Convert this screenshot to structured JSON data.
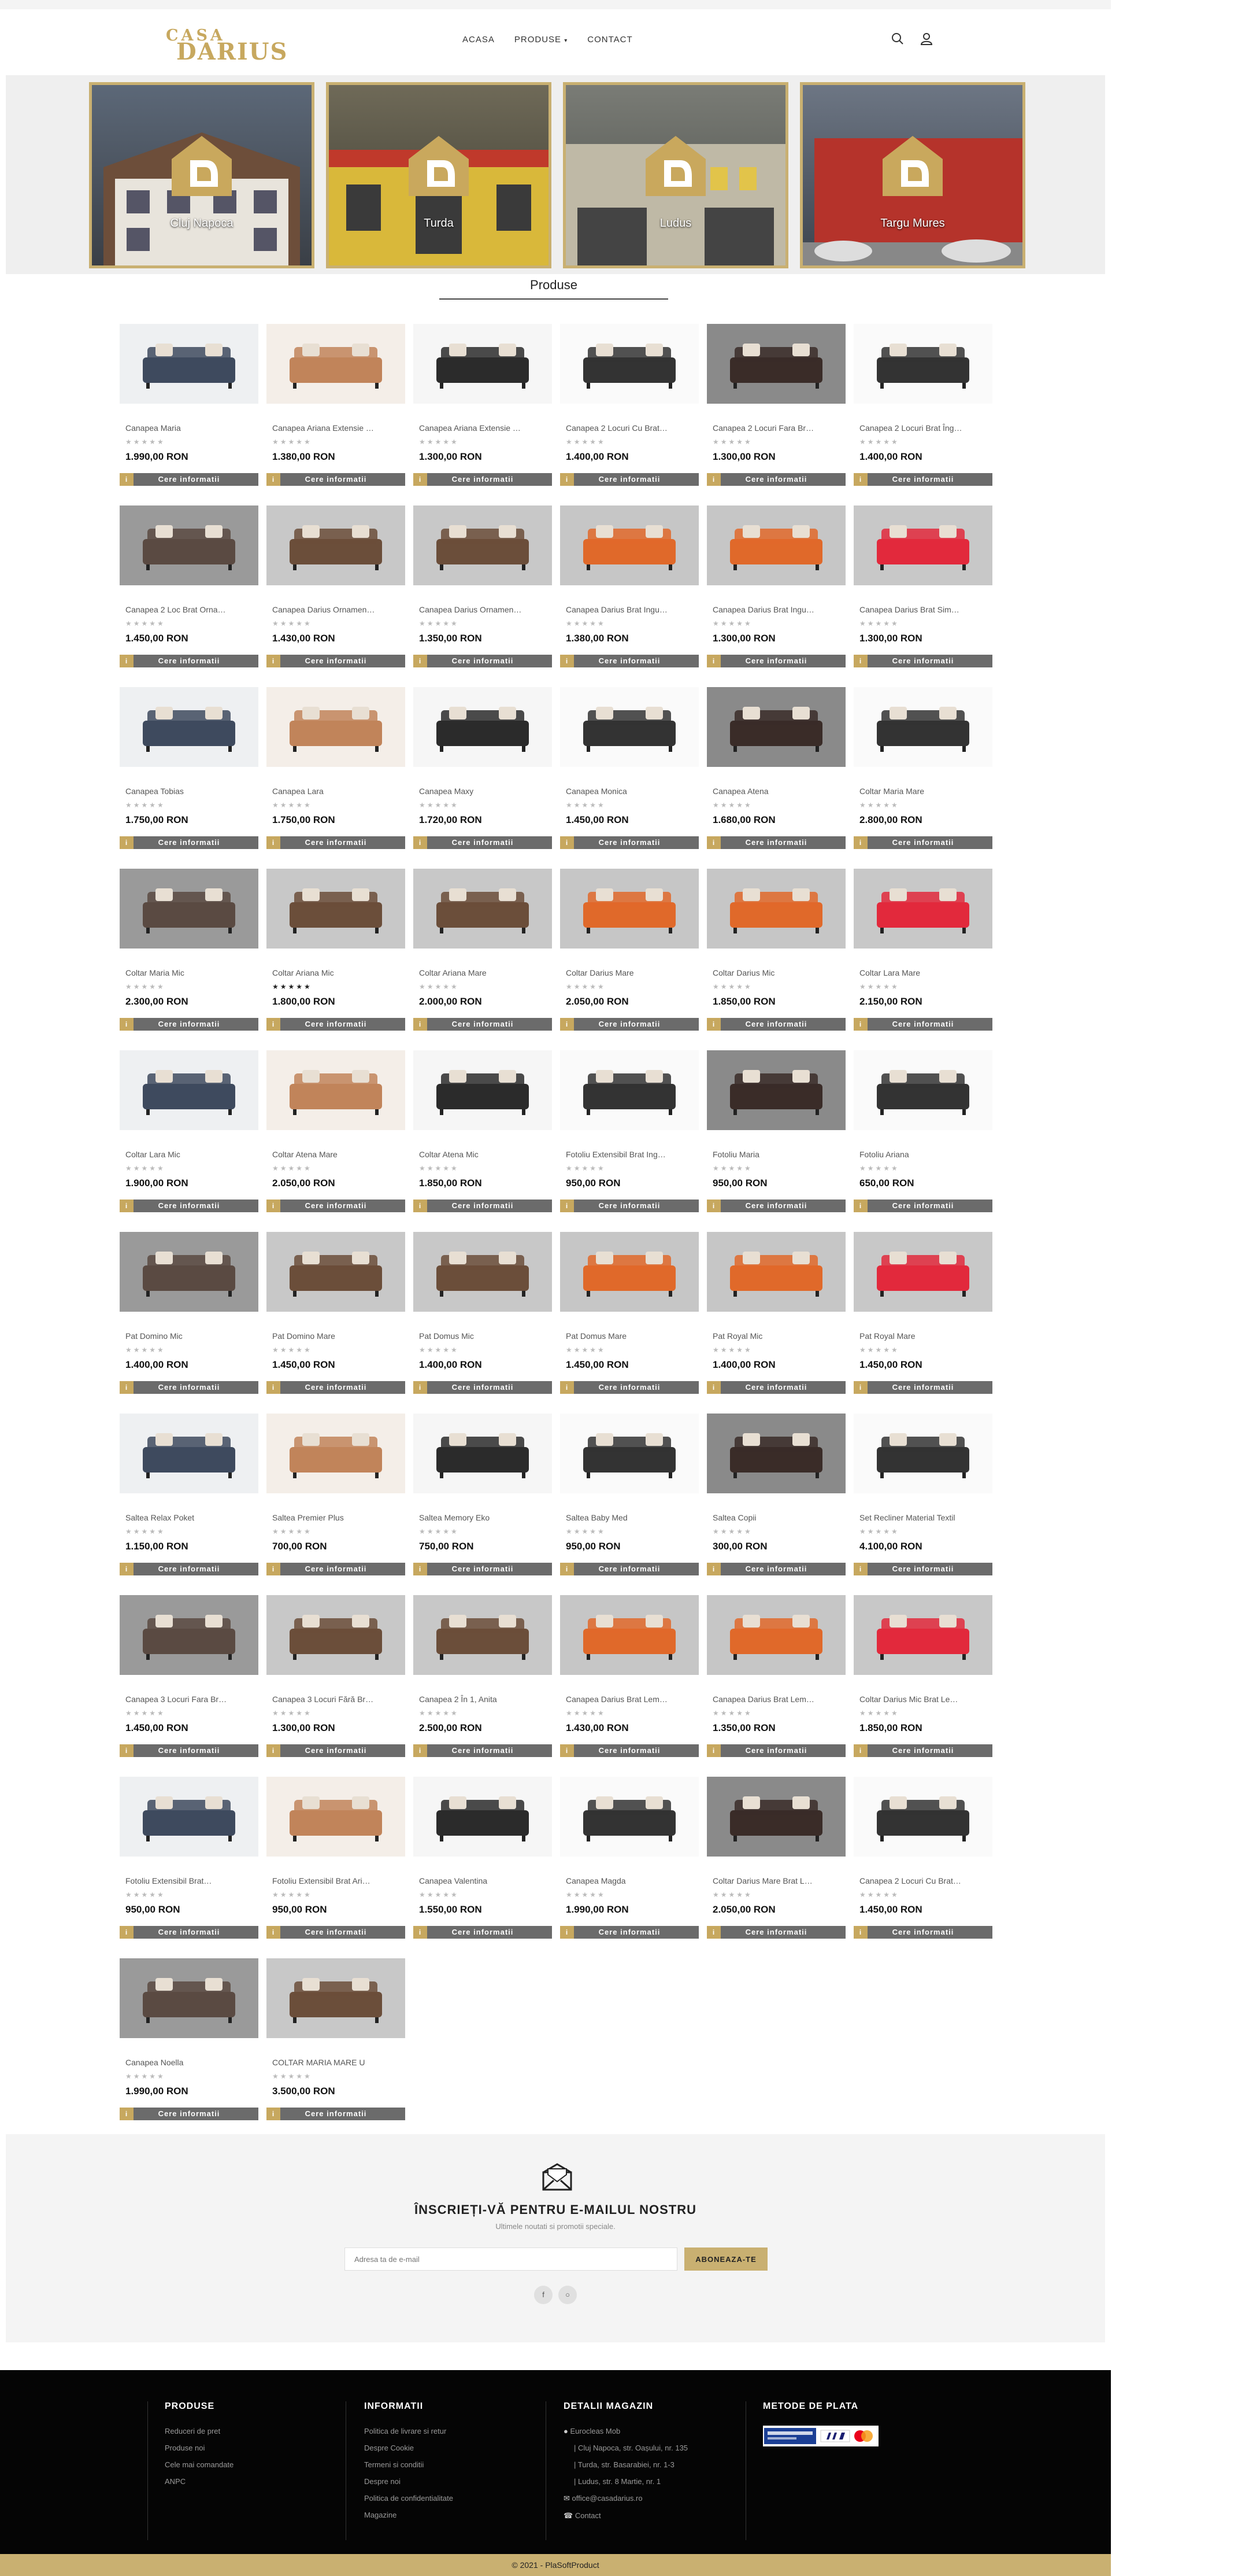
{
  "header": {
    "logo_top": "CASA",
    "logo_bottom": "DARIUS",
    "nav": [
      "ACASA",
      "PRODUSE",
      "CONTACT"
    ]
  },
  "stores": [
    {
      "name": "Cluj Napoca"
    },
    {
      "name": "Turda"
    },
    {
      "name": "Ludus"
    },
    {
      "name": "Targu Mures"
    }
  ],
  "section_title": "Produse",
  "button_label": "Cere informatii",
  "products": [
    {
      "name": "Canapea Maria",
      "price": "1.990,00 RON",
      "rated": false
    },
    {
      "name": "Canapea Ariana Extensie …",
      "price": "1.380,00 RON",
      "rated": false
    },
    {
      "name": "Canapea Ariana Extensie …",
      "price": "1.300,00 RON",
      "rated": false
    },
    {
      "name": "Canapea 2 Locuri Cu Brat…",
      "price": "1.400,00 RON",
      "rated": false
    },
    {
      "name": "Canapea 2 Locuri Fara Br…",
      "price": "1.300,00 RON",
      "rated": false
    },
    {
      "name": "Canapea 2 Locuri Brat Îng…",
      "price": "1.400,00 RON",
      "rated": false
    },
    {
      "name": "Canapea 2 Loc Brat Orna…",
      "price": "1.450,00 RON",
      "rated": false
    },
    {
      "name": "Canapea Darius Ornamen…",
      "price": "1.430,00 RON",
      "rated": false
    },
    {
      "name": "Canapea Darius Ornamen…",
      "price": "1.350,00 RON",
      "rated": false
    },
    {
      "name": "Canapea Darius Brat Ingu…",
      "price": "1.380,00 RON",
      "rated": false
    },
    {
      "name": "Canapea Darius Brat Ingu…",
      "price": "1.300,00 RON",
      "rated": false
    },
    {
      "name": "Canapea Darius Brat Sim…",
      "price": "1.300,00 RON",
      "rated": false
    },
    {
      "name": "Canapea Tobias",
      "price": "1.750,00 RON",
      "rated": false
    },
    {
      "name": "Canapea Lara",
      "price": "1.750,00 RON",
      "rated": false
    },
    {
      "name": "Canapea Maxy",
      "price": "1.720,00 RON",
      "rated": false
    },
    {
      "name": "Canapea Monica",
      "price": "1.450,00 RON",
      "rated": false
    },
    {
      "name": "Canapea Atena",
      "price": "1.680,00 RON",
      "rated": false
    },
    {
      "name": "Coltar Maria Mare",
      "price": "2.800,00 RON",
      "rated": false
    },
    {
      "name": "Coltar Maria Mic",
      "price": "2.300,00 RON",
      "rated": false
    },
    {
      "name": "Coltar Ariana Mic",
      "price": "1.800,00 RON",
      "rated": true
    },
    {
      "name": "Coltar Ariana Mare",
      "price": "2.000,00 RON",
      "rated": false
    },
    {
      "name": "Coltar Darius Mare",
      "price": "2.050,00 RON",
      "rated": false
    },
    {
      "name": "Coltar Darius Mic",
      "price": "1.850,00 RON",
      "rated": false
    },
    {
      "name": "Coltar Lara Mare",
      "price": "2.150,00 RON",
      "rated": false
    },
    {
      "name": "Coltar Lara Mic",
      "price": "1.900,00 RON",
      "rated": false
    },
    {
      "name": "Coltar Atena Mare",
      "price": "2.050,00 RON",
      "rated": false
    },
    {
      "name": "Coltar Atena Mic",
      "price": "1.850,00 RON",
      "rated": false
    },
    {
      "name": "Fotoliu Extensibil Brat Ing…",
      "price": "950,00 RON",
      "rated": false
    },
    {
      "name": "Fotoliu Maria",
      "price": "950,00 RON",
      "rated": false
    },
    {
      "name": "Fotoliu Ariana",
      "price": "650,00 RON",
      "rated": false
    },
    {
      "name": "Pat Domino Mic",
      "price": "1.400,00 RON",
      "rated": false
    },
    {
      "name": "Pat Domino Mare",
      "price": "1.450,00 RON",
      "rated": false
    },
    {
      "name": "Pat Domus Mic",
      "price": "1.400,00 RON",
      "rated": false
    },
    {
      "name": "Pat Domus Mare",
      "price": "1.450,00 RON",
      "rated": false
    },
    {
      "name": "Pat Royal Mic",
      "price": "1.400,00 RON",
      "rated": false
    },
    {
      "name": "Pat Royal Mare",
      "price": "1.450,00 RON",
      "rated": false
    },
    {
      "name": "Saltea Relax Poket",
      "price": "1.150,00 RON",
      "rated": false
    },
    {
      "name": "Saltea Premier Plus",
      "price": "700,00 RON",
      "rated": false
    },
    {
      "name": "Saltea Memory Eko",
      "price": "750,00 RON",
      "rated": false
    },
    {
      "name": "Saltea Baby Med",
      "price": "950,00 RON",
      "rated": false
    },
    {
      "name": "Saltea Copii",
      "price": "300,00 RON",
      "rated": false
    },
    {
      "name": "Set Recliner Material Textil",
      "price": "4.100,00 RON",
      "rated": false
    },
    {
      "name": "Canapea 3 Locuri Fara Br…",
      "price": "1.450,00 RON",
      "rated": false
    },
    {
      "name": "Canapea 3 Locuri Fără Br…",
      "price": "1.300,00 RON",
      "rated": false
    },
    {
      "name": "Canapea 2 În 1, Anita",
      "price": "2.500,00 RON",
      "rated": false
    },
    {
      "name": "Canapea Darius Brat Lem…",
      "price": "1.430,00 RON",
      "rated": false
    },
    {
      "name": "Canapea Darius Brat Lem…",
      "price": "1.350,00 RON",
      "rated": false
    },
    {
      "name": "Coltar Darius Mic Brat Le…",
      "price": "1.850,00 RON",
      "rated": false
    },
    {
      "name": "Fotoliu Extensibil Brat…",
      "price": "950,00 RON",
      "rated": false
    },
    {
      "name": "Fotoliu Extensibil Brat Ari…",
      "price": "950,00 RON",
      "rated": false
    },
    {
      "name": "Canapea Valentina",
      "price": "1.550,00 RON",
      "rated": false
    },
    {
      "name": "Canapea Magda",
      "price": "1.990,00 RON",
      "rated": false
    },
    {
      "name": "Coltar Darius Mare Brat L…",
      "price": "2.050,00 RON",
      "rated": false
    },
    {
      "name": "Canapea 2 Locuri Cu Brat…",
      "price": "1.450,00 RON",
      "rated": false
    },
    {
      "name": "Canapea Noella",
      "price": "1.990,00 RON",
      "rated": false
    },
    {
      "name": "COLTAR MARIA MARE U",
      "price": "3.500,00 RON",
      "rated": false
    }
  ],
  "newsletter": {
    "title": "ÎNSCRIEȚI-VĂ PENTRU E-MAILUL NOSTRU",
    "subtitle": "Ultimele noutati si promotii speciale.",
    "placeholder": "Adresa ta de e-mail",
    "button": "ABONEAZA-TE"
  },
  "footer": {
    "col1": {
      "title": "PRODUSE",
      "links": [
        "Reduceri de pret",
        "Produse noi",
        "Cele mai comandate",
        "ANPC"
      ]
    },
    "col2": {
      "title": "INFORMATII",
      "links": [
        "Politica de livrare si retur",
        "Despre Cookie",
        "Termeni si conditii",
        "Despre noi",
        "Politica de confidentialitate",
        "Magazine"
      ]
    },
    "col3": {
      "title": "DETALII MAGAZIN",
      "lines": [
        "Eurocleas Mob",
        "| Cluj Napoca, str. Oașului, nr. 135",
        "| Turda, str. Basarabiei, nr. 1-3",
        "| Ludus, str. 8 Martie, nr. 1",
        "office@casadarius.ro",
        "Contact"
      ]
    },
    "col4": {
      "title": "METODE DE PLATA"
    },
    "copyright": "© 2021 - PlaSoftProduct"
  },
  "colors": {
    "accent": "#c9b071",
    "button_gray": "#6b6b6b",
    "footer_bg": "#050505"
  }
}
